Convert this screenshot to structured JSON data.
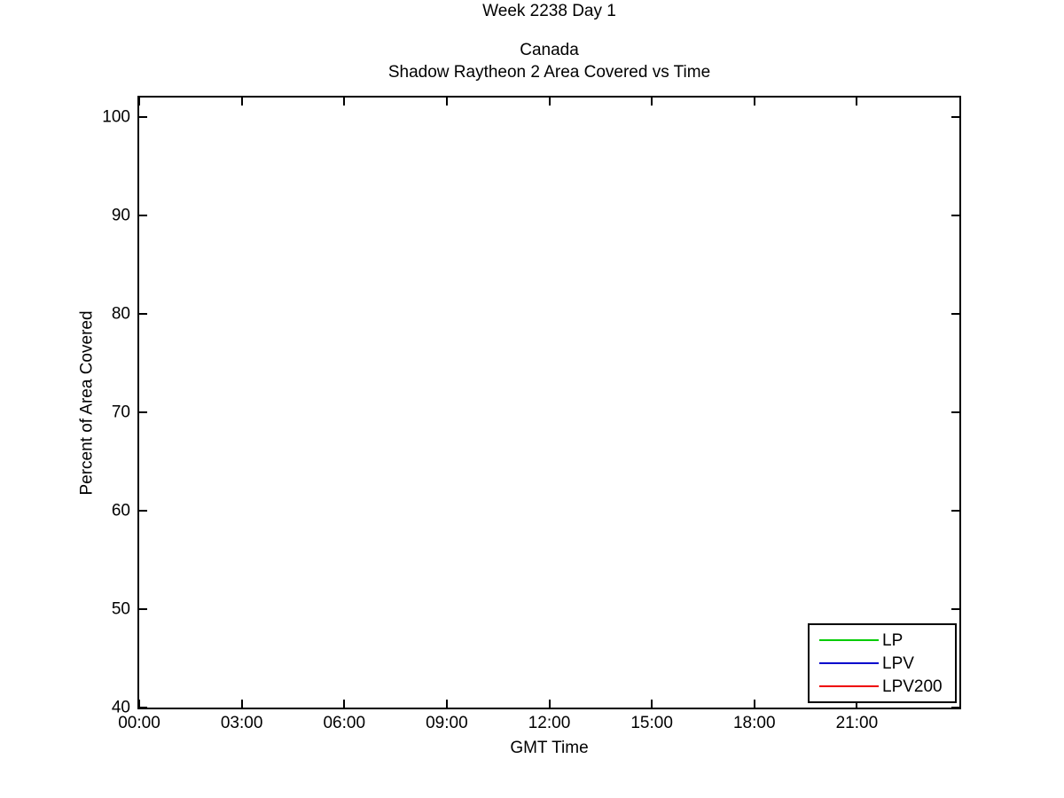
{
  "titles": {
    "suptitle": "Week 2238 Day 1",
    "subtitle": "Canada",
    "main": "Shadow Raytheon 2 Area Covered vs Time"
  },
  "chart_data": {
    "type": "line",
    "title": "Shadow Raytheon 2 Area Covered vs Time",
    "suptitle": "Week 2238 Day 1",
    "subtitle": "Canada",
    "xlabel": "GMT Time",
    "ylabel": "Percent of Area Covered",
    "xlim_hours": [
      0,
      24
    ],
    "ylim": [
      40,
      102
    ],
    "grid": false,
    "x_ticks": [
      {
        "hour": 0,
        "label": "00:00"
      },
      {
        "hour": 3,
        "label": "03:00"
      },
      {
        "hour": 6,
        "label": "06:00"
      },
      {
        "hour": 9,
        "label": "09:00"
      },
      {
        "hour": 12,
        "label": "12:00"
      },
      {
        "hour": 15,
        "label": "15:00"
      },
      {
        "hour": 18,
        "label": "18:00"
      },
      {
        "hour": 21,
        "label": "21:00"
      }
    ],
    "y_ticks": [
      40,
      50,
      60,
      70,
      80,
      90,
      100
    ],
    "legend_position": "bottom-right",
    "series": [
      {
        "name": "LP",
        "color": "#00CC00",
        "points": []
      },
      {
        "name": "LPV",
        "color": "#0000CC",
        "points": []
      },
      {
        "name": "LPV200",
        "color": "#EE0000",
        "points": []
      }
    ]
  },
  "legend": {
    "entries": [
      {
        "label": "LP",
        "color": "#00CC00"
      },
      {
        "label": "LPV",
        "color": "#0000CC"
      },
      {
        "label": "LPV200",
        "color": "#EE0000"
      }
    ]
  },
  "colors": {
    "axis": "#000000",
    "background": "#ffffff"
  }
}
